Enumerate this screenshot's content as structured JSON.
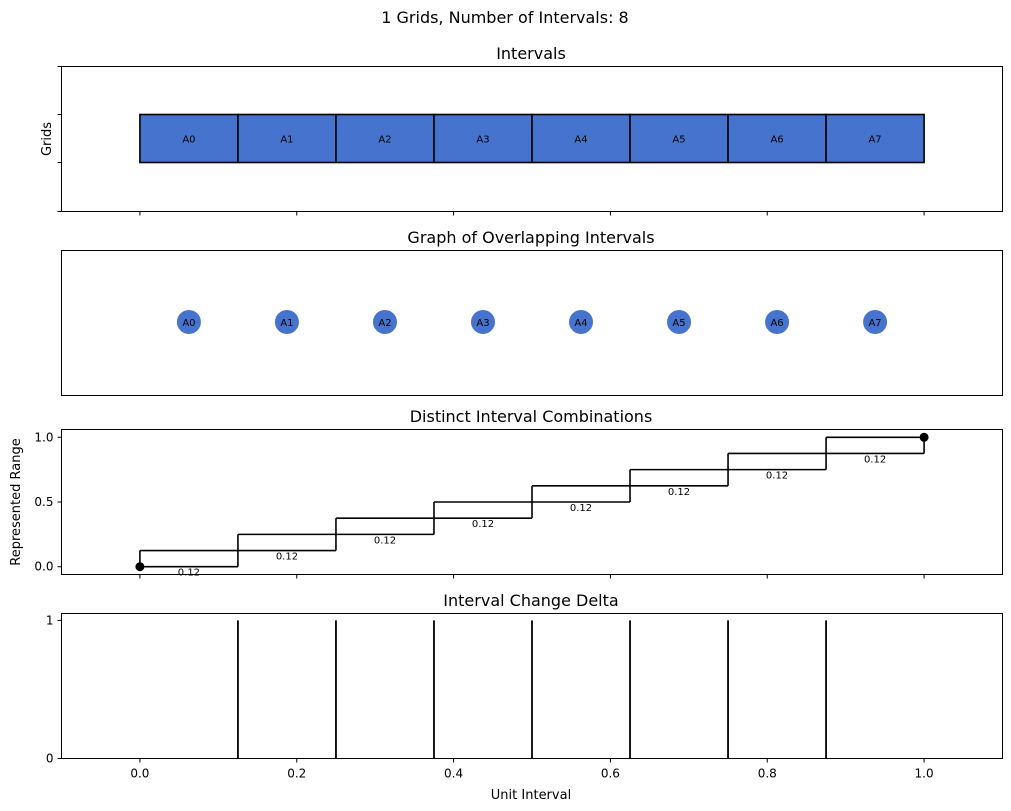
{
  "suptitle": "1 Grids, Number of Intervals: 8",
  "colors": {
    "interval_fill": "#4673CD",
    "line": "#000000"
  },
  "x_ticks": [
    "0.0",
    "0.2",
    "0.4",
    "0.6",
    "0.8",
    "1.0"
  ],
  "x_tick_values": [
    0,
    0.2,
    0.4,
    0.6,
    0.8,
    1.0
  ],
  "xlabel": "Unit Interval",
  "xlim": [
    -0.1,
    1.1
  ],
  "chart_data": [
    {
      "type": "bar",
      "title": "Intervals",
      "ylabel": "Grids",
      "intervals": [
        {
          "label": "A0",
          "start": 0.0,
          "end": 0.125
        },
        {
          "label": "A1",
          "start": 0.125,
          "end": 0.25
        },
        {
          "label": "A2",
          "start": 0.25,
          "end": 0.375
        },
        {
          "label": "A3",
          "start": 0.375,
          "end": 0.5
        },
        {
          "label": "A4",
          "start": 0.5,
          "end": 0.625
        },
        {
          "label": "A5",
          "start": 0.625,
          "end": 0.75
        },
        {
          "label": "A6",
          "start": 0.75,
          "end": 0.875
        },
        {
          "label": "A7",
          "start": 0.875,
          "end": 1.0
        }
      ]
    },
    {
      "type": "scatter",
      "title": "Graph of Overlapping Intervals",
      "nodes": [
        "A0",
        "A1",
        "A2",
        "A3",
        "A4",
        "A5",
        "A6",
        "A7"
      ]
    },
    {
      "type": "line",
      "title": "Distinct Interval Combinations",
      "ylabel": "Represented Range",
      "y_ticks": [
        "0.0",
        "0.5",
        "1.0"
      ],
      "y_tick_values": [
        0,
        0.5,
        1.0
      ],
      "ylim": [
        -0.06,
        1.06
      ],
      "steps": [
        {
          "x0": 0.0,
          "x1": 0.125,
          "y": 0.125,
          "label": "0.12"
        },
        {
          "x0": 0.125,
          "x1": 0.25,
          "y": 0.25,
          "label": "0.12"
        },
        {
          "x0": 0.25,
          "x1": 0.375,
          "y": 0.375,
          "label": "0.12"
        },
        {
          "x0": 0.375,
          "x1": 0.5,
          "y": 0.5,
          "label": "0.12"
        },
        {
          "x0": 0.5,
          "x1": 0.625,
          "y": 0.625,
          "label": "0.12"
        },
        {
          "x0": 0.625,
          "x1": 0.75,
          "y": 0.75,
          "label": "0.12"
        },
        {
          "x0": 0.75,
          "x1": 0.875,
          "y": 0.875,
          "label": "0.12"
        },
        {
          "x0": 0.875,
          "x1": 1.0,
          "y": 1.0,
          "label": "0.12"
        }
      ],
      "endpoints": [
        {
          "x": 0.0,
          "y": 0.0
        },
        {
          "x": 1.0,
          "y": 1.0
        }
      ]
    },
    {
      "type": "bar",
      "title": "Interval Change Delta",
      "y_ticks": [
        "0",
        "1"
      ],
      "y_tick_values": [
        0,
        1
      ],
      "ylim": [
        0,
        1.05
      ],
      "x": [
        0.125,
        0.25,
        0.375,
        0.5,
        0.625,
        0.75,
        0.875
      ],
      "values": [
        1,
        1,
        1,
        1,
        1,
        1,
        1
      ]
    }
  ]
}
